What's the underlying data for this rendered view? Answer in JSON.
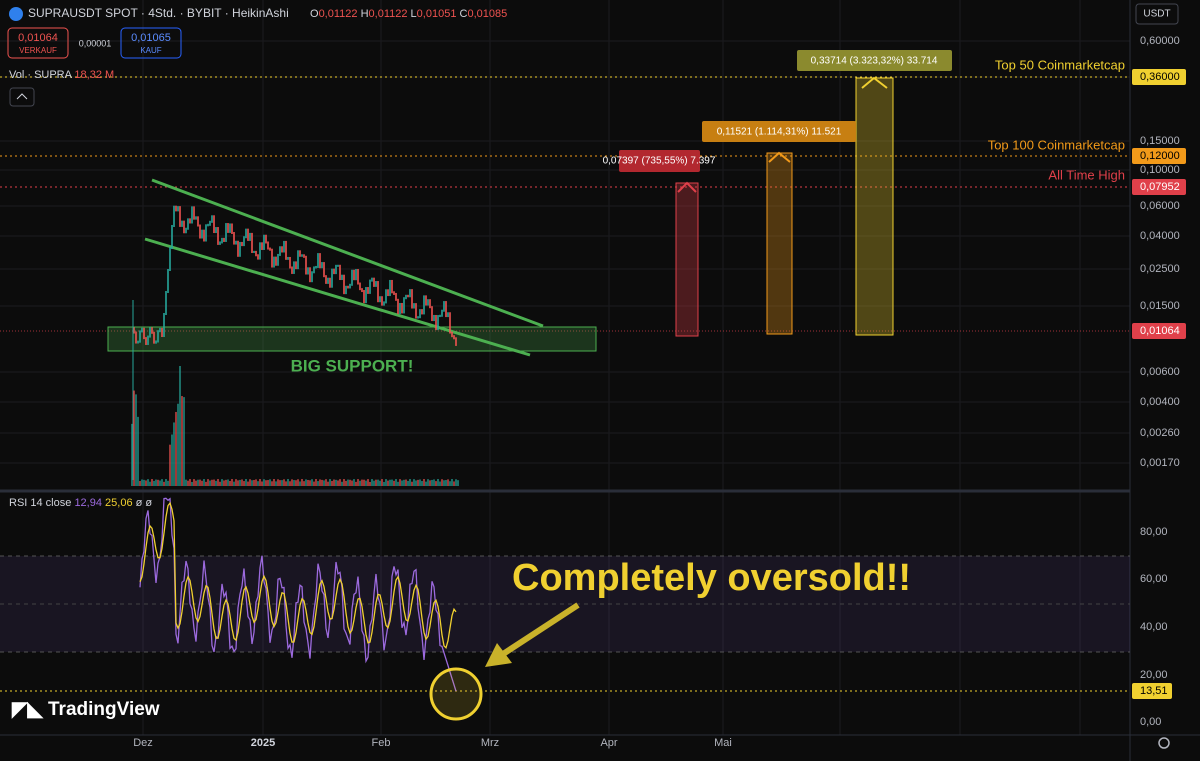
{
  "header": {
    "symbol": "SUPRAUSDT SPOT · 4Std. · BYBIT · HeikinAshi",
    "ohlc": [
      "O",
      "0,01122",
      "H",
      "0,01122",
      "L",
      "0,01051",
      "C",
      "0,01085"
    ],
    "sell_price": "0,01064",
    "sell_label": "VERKAUF",
    "spread": "0,00001",
    "buy_price": "0,01065",
    "buy_label": "KAUF",
    "volume_label": "Vol · SUPRA",
    "volume_value": "18,32 M",
    "currency": "USDT"
  },
  "price_axis": [
    "0,60000",
    "0,36000",
    "0,15000",
    "0,12000",
    "0,10000",
    "0,07952",
    "0,06000",
    "0,04000",
    "0,02500",
    "0,01500",
    "0,01064",
    "0,00600",
    "0,00400",
    "0,00260",
    "0,00170"
  ],
  "annotations": {
    "top50": "Top 50 Coinmarketcap",
    "top100": "Top 100 Coinmarketcap",
    "ath": "All Time High",
    "support": "BIG SUPPORT!",
    "oversold": "Completely oversold!!"
  },
  "targets": [
    "0,07397 (735,55%) 7.397",
    "0,11521 (1.114,31%) 11.521",
    "0,33714 (3.323,32%) 33.714"
  ],
  "rsi": {
    "label": "RSI 14 close",
    "value": "12,94",
    "ma": "25,06",
    "extra": [
      "ø",
      "ø"
    ],
    "axis": [
      "80,00",
      "60,00",
      "40,00",
      "20,00",
      "13,51",
      "0,00"
    ]
  },
  "time_axis": [
    "Dez",
    "2025",
    "Feb",
    "Mrz",
    "Apr",
    "Mai"
  ],
  "logo": "TradingView"
}
